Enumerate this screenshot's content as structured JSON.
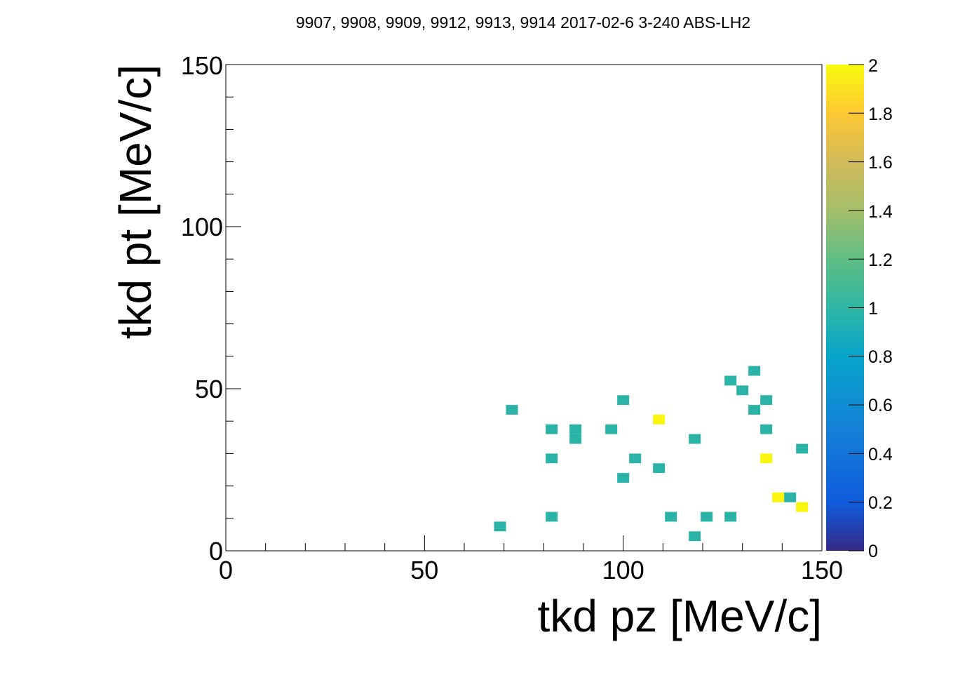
{
  "chart_data": {
    "type": "heatmap",
    "title": "9907, 9908, 9909, 9912, 9913, 9914 2017-02-6 3-240 ABS-LH2",
    "xlabel": "tkd pz [MeV/c]",
    "ylabel": "tkd pt [MeV/c]",
    "xlim": [
      0,
      150
    ],
    "ylim": [
      0,
      150
    ],
    "x_ticks": [
      "0",
      "50",
      "100",
      "150"
    ],
    "y_ticks": [
      "0",
      "50",
      "100",
      "150"
    ],
    "bin_width": 3,
    "colorbar": {
      "zlim": [
        0,
        2
      ],
      "ticks": [
        "0",
        "0.2",
        "0.4",
        "0.6",
        "0.8",
        "1",
        "1.2",
        "1.4",
        "1.6",
        "1.8",
        "2"
      ],
      "palette": "viridis"
    },
    "colors": {
      "count_1": "#2ab3a6",
      "count_2": "#f9f50e"
    },
    "bins": [
      {
        "x": 72,
        "y": 43.5,
        "count": 1
      },
      {
        "x": 69,
        "y": 7.5,
        "count": 1
      },
      {
        "x": 82,
        "y": 37.5,
        "count": 1
      },
      {
        "x": 82,
        "y": 28.5,
        "count": 1
      },
      {
        "x": 82,
        "y": 10.5,
        "count": 1
      },
      {
        "x": 88,
        "y": 37.5,
        "count": 1
      },
      {
        "x": 88,
        "y": 34.5,
        "count": 1
      },
      {
        "x": 97,
        "y": 37.5,
        "count": 1
      },
      {
        "x": 100,
        "y": 46.5,
        "count": 1
      },
      {
        "x": 100,
        "y": 22.5,
        "count": 1
      },
      {
        "x": 103,
        "y": 28.5,
        "count": 1
      },
      {
        "x": 109,
        "y": 40.5,
        "count": 2
      },
      {
        "x": 109,
        "y": 25.5,
        "count": 1
      },
      {
        "x": 112,
        "y": 10.5,
        "count": 1
      },
      {
        "x": 118,
        "y": 34.5,
        "count": 1
      },
      {
        "x": 118,
        "y": 4.5,
        "count": 1
      },
      {
        "x": 121,
        "y": 10.5,
        "count": 1
      },
      {
        "x": 127,
        "y": 52.5,
        "count": 1
      },
      {
        "x": 127,
        "y": 10.5,
        "count": 1
      },
      {
        "x": 130,
        "y": 49.5,
        "count": 1
      },
      {
        "x": 133,
        "y": 55.5,
        "count": 1
      },
      {
        "x": 133,
        "y": 43.5,
        "count": 1
      },
      {
        "x": 136,
        "y": 46.5,
        "count": 1
      },
      {
        "x": 136,
        "y": 37.5,
        "count": 1
      },
      {
        "x": 136,
        "y": 28.5,
        "count": 2
      },
      {
        "x": 139,
        "y": 16.5,
        "count": 2
      },
      {
        "x": 142,
        "y": 16.5,
        "count": 1
      },
      {
        "x": 145,
        "y": 31.5,
        "count": 1
      },
      {
        "x": 145,
        "y": 13.5,
        "count": 2
      }
    ]
  }
}
